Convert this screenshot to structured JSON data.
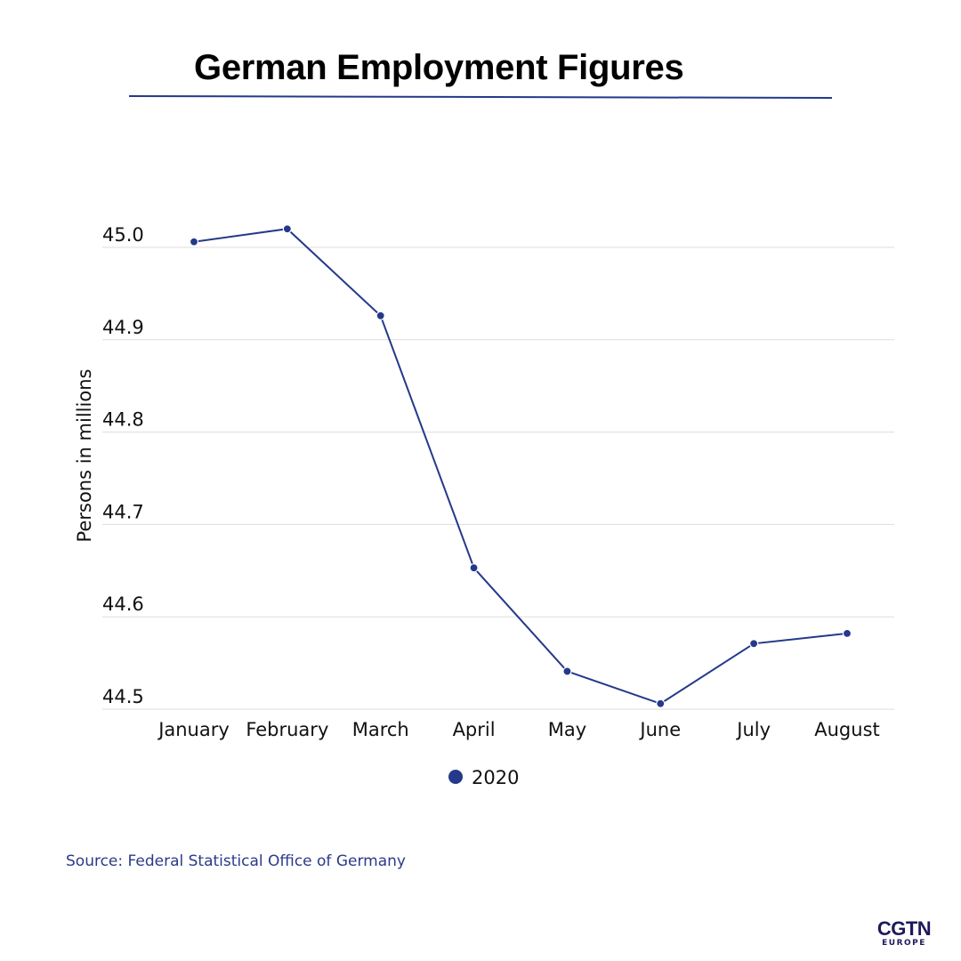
{
  "header": {
    "title": "German Employment Figures"
  },
  "colors": {
    "series": "#24398a",
    "grid": "#dddddd",
    "rule": "#24398a",
    "source": "#2b3a8a",
    "logo": "#1c1a5a"
  },
  "chart_data": {
    "type": "line",
    "title": "German Employment Figures",
    "xlabel": "",
    "ylabel": "Persons in millions",
    "categories": [
      "January",
      "February",
      "March",
      "April",
      "May",
      "June",
      "July",
      "August"
    ],
    "series": [
      {
        "name": "2020",
        "values": [
          45.006,
          45.02,
          44.926,
          44.653,
          44.541,
          44.506,
          44.571,
          44.582
        ]
      }
    ],
    "yticks": [
      "44.5",
      "44.6",
      "44.7",
      "44.8",
      "44.9",
      "45.0"
    ],
    "ylim": [
      44.5,
      45.0
    ],
    "grid": true,
    "legend": "bottom-center"
  },
  "footer": {
    "source": "Source: Federal Statistical Office of Germany"
  },
  "logo": {
    "line1": "CGTN",
    "line2": "EUROPE"
  }
}
